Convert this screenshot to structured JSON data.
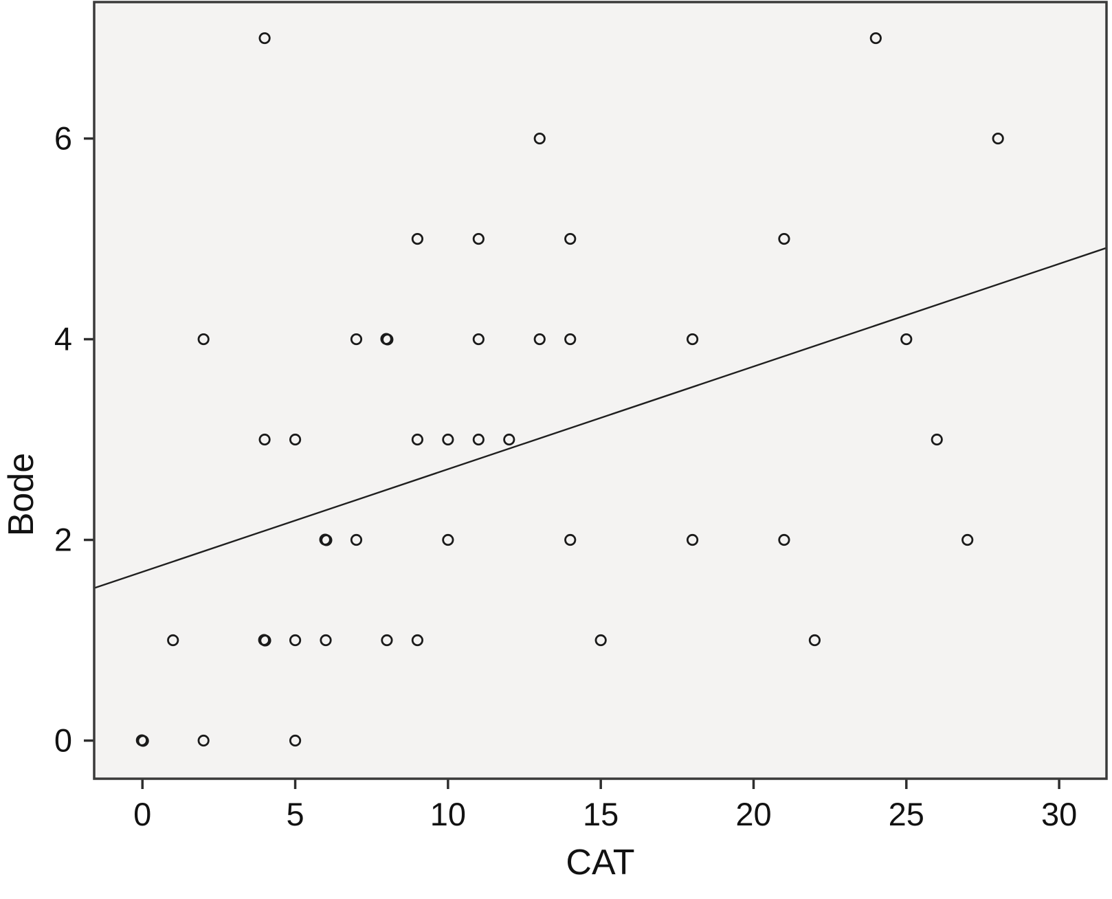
{
  "chart_data": {
    "type": "scatter",
    "title": "",
    "xlabel": "CAT",
    "ylabel": "Bode",
    "x_ticks": [
      0,
      5,
      10,
      15,
      20,
      25,
      30
    ],
    "y_ticks": [
      0,
      2,
      4,
      6
    ],
    "xlim": [
      -1.58,
      31.55
    ],
    "ylim": [
      -0.38,
      7.36
    ],
    "grid": false,
    "legend": "none",
    "marker": "open-circle",
    "points": [
      {
        "x": 4,
        "y": 7,
        "double": false
      },
      {
        "x": 24,
        "y": 7,
        "double": false
      },
      {
        "x": 13,
        "y": 6,
        "double": false
      },
      {
        "x": 28,
        "y": 6,
        "double": false
      },
      {
        "x": 9,
        "y": 5,
        "double": false
      },
      {
        "x": 11,
        "y": 5,
        "double": false
      },
      {
        "x": 14,
        "y": 5,
        "double": false
      },
      {
        "x": 21,
        "y": 5,
        "double": false
      },
      {
        "x": 2,
        "y": 4,
        "double": false
      },
      {
        "x": 7,
        "y": 4,
        "double": false
      },
      {
        "x": 8,
        "y": 4,
        "double": true
      },
      {
        "x": 11,
        "y": 4,
        "double": false
      },
      {
        "x": 13,
        "y": 4,
        "double": false
      },
      {
        "x": 14,
        "y": 4,
        "double": false
      },
      {
        "x": 18,
        "y": 4,
        "double": false
      },
      {
        "x": 25,
        "y": 4,
        "double": false
      },
      {
        "x": 4,
        "y": 3,
        "double": false
      },
      {
        "x": 5,
        "y": 3,
        "double": false
      },
      {
        "x": 9,
        "y": 3,
        "double": false
      },
      {
        "x": 10,
        "y": 3,
        "double": false
      },
      {
        "x": 11,
        "y": 3,
        "double": false
      },
      {
        "x": 12,
        "y": 3,
        "double": false
      },
      {
        "x": 26,
        "y": 3,
        "double": false
      },
      {
        "x": 6,
        "y": 2,
        "double": true
      },
      {
        "x": 7,
        "y": 2,
        "double": false
      },
      {
        "x": 10,
        "y": 2,
        "double": false
      },
      {
        "x": 14,
        "y": 2,
        "double": false
      },
      {
        "x": 18,
        "y": 2,
        "double": false
      },
      {
        "x": 21,
        "y": 2,
        "double": false
      },
      {
        "x": 27,
        "y": 2,
        "double": false
      },
      {
        "x": 1,
        "y": 1,
        "double": false
      },
      {
        "x": 4,
        "y": 1,
        "double": true
      },
      {
        "x": 5,
        "y": 1,
        "double": false
      },
      {
        "x": 6,
        "y": 1,
        "double": false
      },
      {
        "x": 8,
        "y": 1,
        "double": false
      },
      {
        "x": 9,
        "y": 1,
        "double": false
      },
      {
        "x": 15,
        "y": 1,
        "double": false
      },
      {
        "x": 22,
        "y": 1,
        "double": false
      },
      {
        "x": 0,
        "y": 0,
        "double": true
      },
      {
        "x": 2,
        "y": 0,
        "double": false
      },
      {
        "x": 5,
        "y": 0,
        "double": false
      }
    ],
    "regression_line": {
      "slope": 0.102,
      "intercept": 1.683,
      "x_start": -1.58,
      "y_start": 1.52,
      "x_end": 31.55,
      "y_end": 4.91
    },
    "colors": {
      "plot_background": "#f4f3f2",
      "figure_background": "#ffffff",
      "border": "#3a3a3a",
      "marker_stroke": "#1a1a1a",
      "line": "#1f1f1f",
      "tick": "#2e2e2e",
      "text": "#121212"
    }
  }
}
